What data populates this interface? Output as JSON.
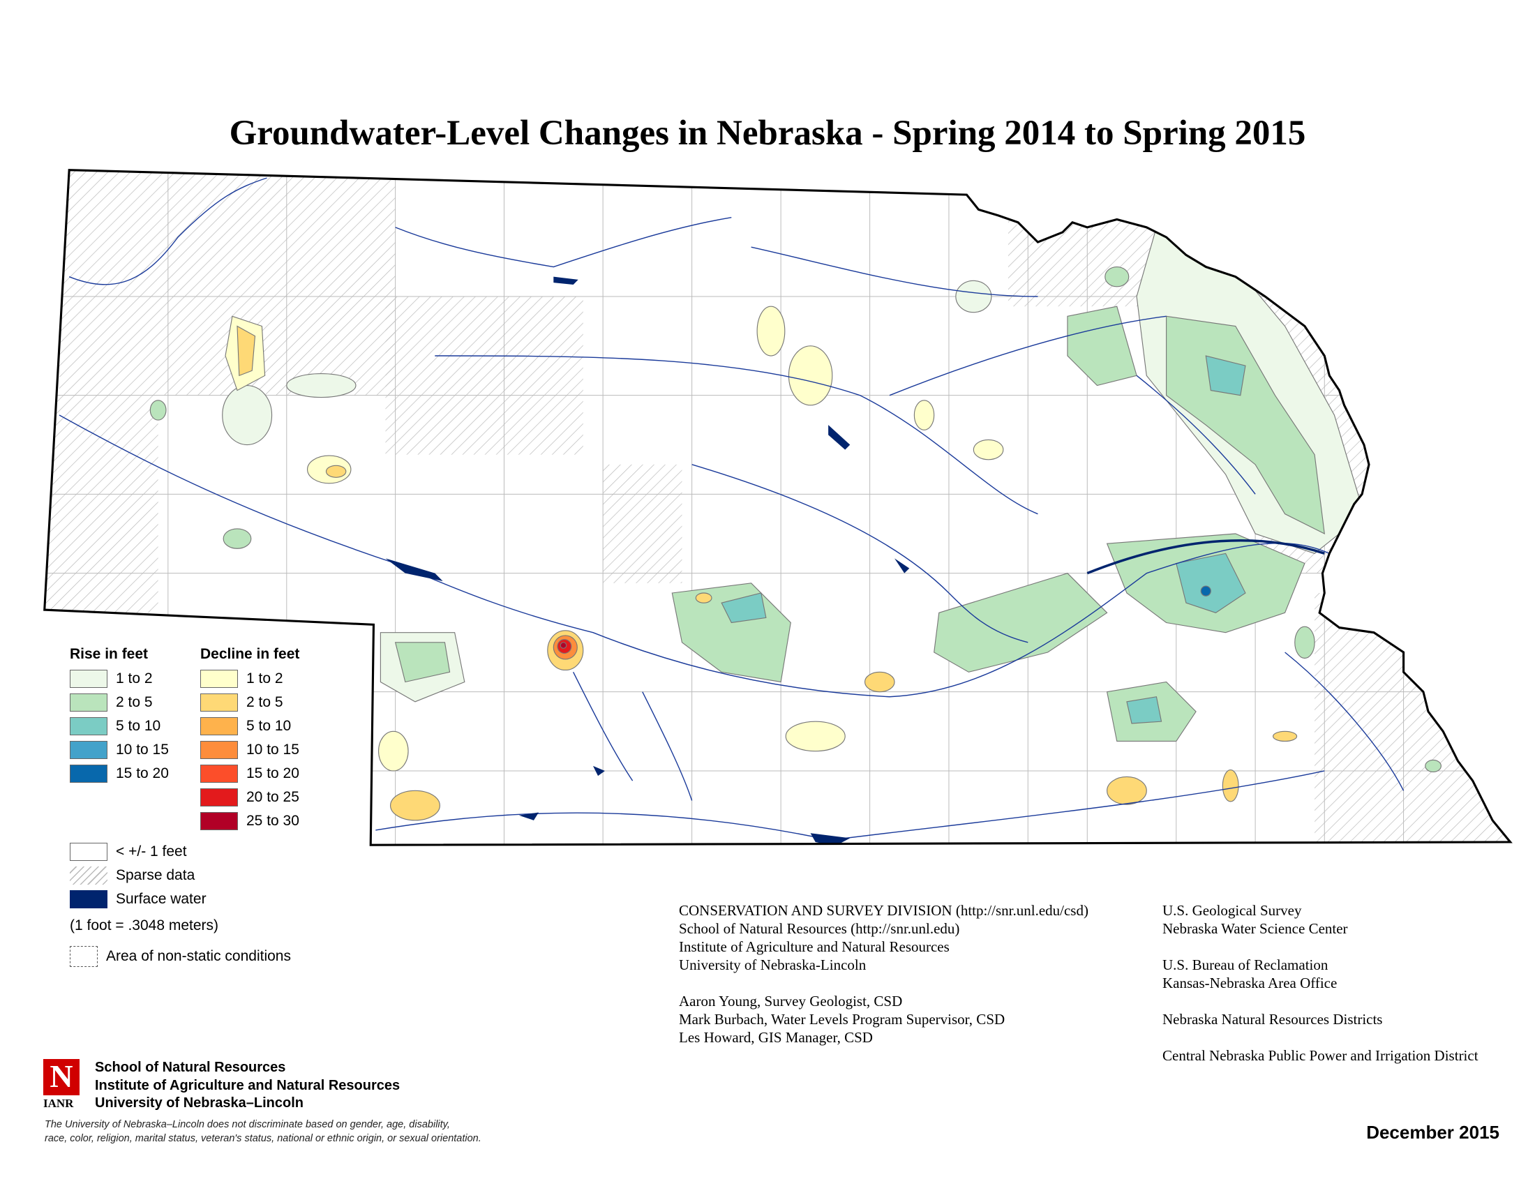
{
  "title": "Groundwater-Level Changes in Nebraska - Spring 2014 to Spring 2015",
  "legend": {
    "rise_title": "Rise in feet",
    "rise": [
      {
        "label": "1 to 2",
        "color": "#edf8e9"
      },
      {
        "label": "2 to 5",
        "color": "#bae4bc"
      },
      {
        "label": "5 to 10",
        "color": "#7bccc4"
      },
      {
        "label": "10 to 15",
        "color": "#43a2ca"
      },
      {
        "label": "15 to 20",
        "color": "#0868ac"
      }
    ],
    "decline_title": "Decline in feet",
    "decline": [
      {
        "label": "1 to 2",
        "color": "#ffffcc"
      },
      {
        "label": "2 to 5",
        "color": "#fed976"
      },
      {
        "label": "5 to 10",
        "color": "#feb24c"
      },
      {
        "label": "10 to 15",
        "color": "#fd8d3c"
      },
      {
        "label": "15 to 20",
        "color": "#fc4e2a"
      },
      {
        "label": "20 to 25",
        "color": "#e31a1c"
      },
      {
        "label": "25 to 30",
        "color": "#b10026"
      }
    ],
    "no_change": "< +/- 1 feet",
    "sparse": "Sparse data",
    "surface_water": "Surface water",
    "surface_water_color": "#00246e",
    "conversion": "(1 foot = .3048 meters)",
    "non_static": "Area of non-static conditions"
  },
  "credits_left": [
    "CONSERVATION AND SURVEY DIVISION (http://snr.unl.edu/csd)",
    "School of Natural Resources (http://snr.unl.edu)",
    "Institute of Agriculture and Natural Resources",
    "University of Nebraska-Lincoln",
    "",
    "Aaron Young, Survey Geologist, CSD",
    "Mark Burbach, Water Levels Program Supervisor, CSD",
    "Les Howard, GIS Manager, CSD"
  ],
  "credits_right": [
    "U.S. Geological Survey",
    "Nebraska Water Science Center",
    "",
    "U.S. Bureau of Reclamation",
    "Kansas-Nebraska Area Office",
    "",
    "Nebraska Natural Resources Districts",
    "",
    "Central Nebraska Public Power and Irrigation District"
  ],
  "logo": {
    "letter": "N",
    "text": "IANR"
  },
  "org_lines": [
    "School of Natural Resources",
    "Institute of Agriculture and Natural Resources",
    "University of Nebraska–Lincoln"
  ],
  "disclaimer": [
    "The University of Nebraska–Lincoln does not discriminate based on gender, age, disability,",
    "race, color, religion, marital status, veteran's status, national or ethnic origin, or sexual orientation."
  ],
  "date": "December 2015"
}
